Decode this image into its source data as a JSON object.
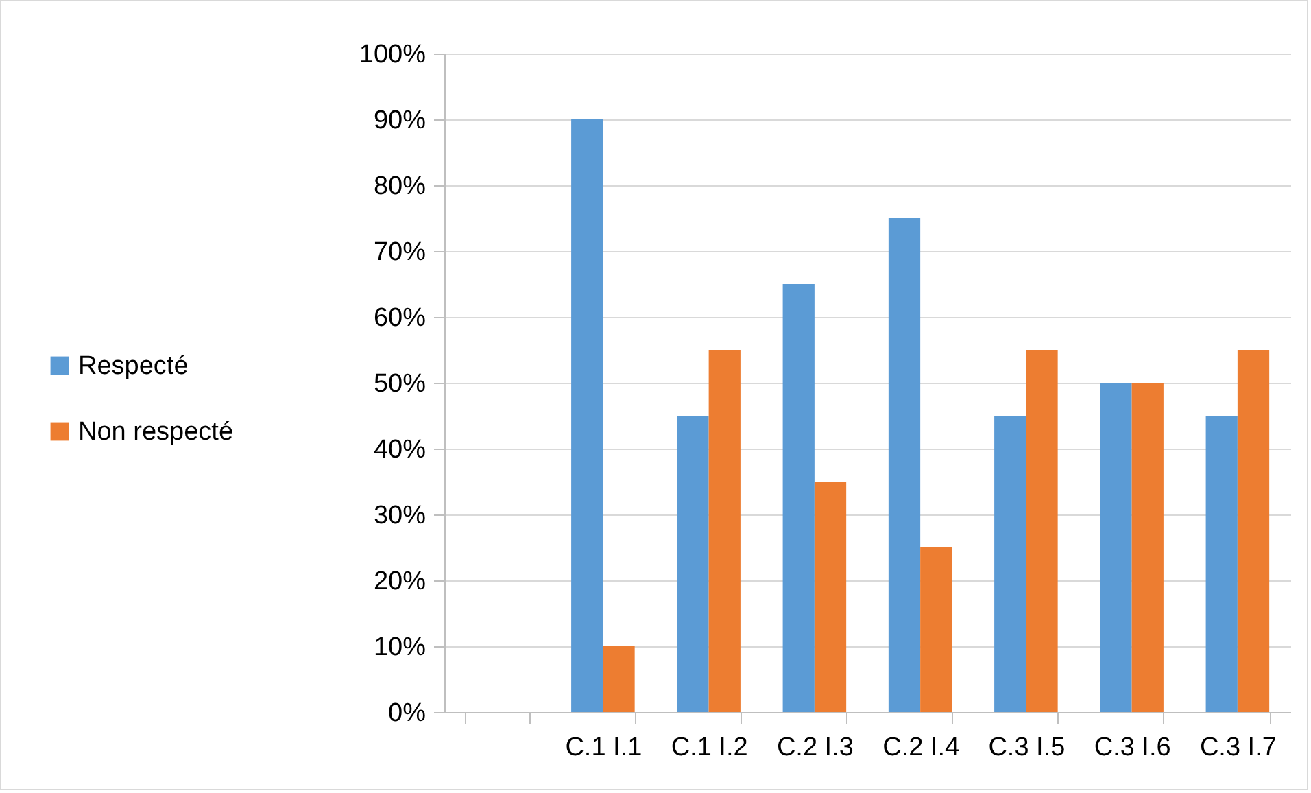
{
  "chart_data": {
    "type": "bar",
    "categories": [
      null,
      "C.1 I.1",
      "C.1 I.2",
      "C.2 I.3",
      "C.2 I.4",
      "C.3 I.5",
      "C.3 I.6",
      "C.3 I.7"
    ],
    "series": [
      {
        "name": "Respecté",
        "color": "#5b9bd5",
        "values": [
          null,
          90,
          45,
          65,
          75,
          45,
          50,
          45
        ]
      },
      {
        "name": "Non respecté",
        "color": "#ed7d31",
        "values": [
          null,
          10,
          55,
          35,
          25,
          55,
          50,
          55
        ]
      }
    ],
    "ylim": [
      0,
      100
    ],
    "yticks": [
      {
        "value": 0,
        "label": "0%"
      },
      {
        "value": 10,
        "label": "10%"
      },
      {
        "value": 20,
        "label": "20%"
      },
      {
        "value": 30,
        "label": "30%"
      },
      {
        "value": 40,
        "label": "40%"
      },
      {
        "value": 50,
        "label": "50%"
      },
      {
        "value": 60,
        "label": "60%"
      },
      {
        "value": 70,
        "label": "70%"
      },
      {
        "value": 80,
        "label": "80%"
      },
      {
        "value": 90,
        "label": "90%"
      },
      {
        "value": 100,
        "label": "100%"
      }
    ],
    "grid": "y",
    "legend": "left"
  }
}
